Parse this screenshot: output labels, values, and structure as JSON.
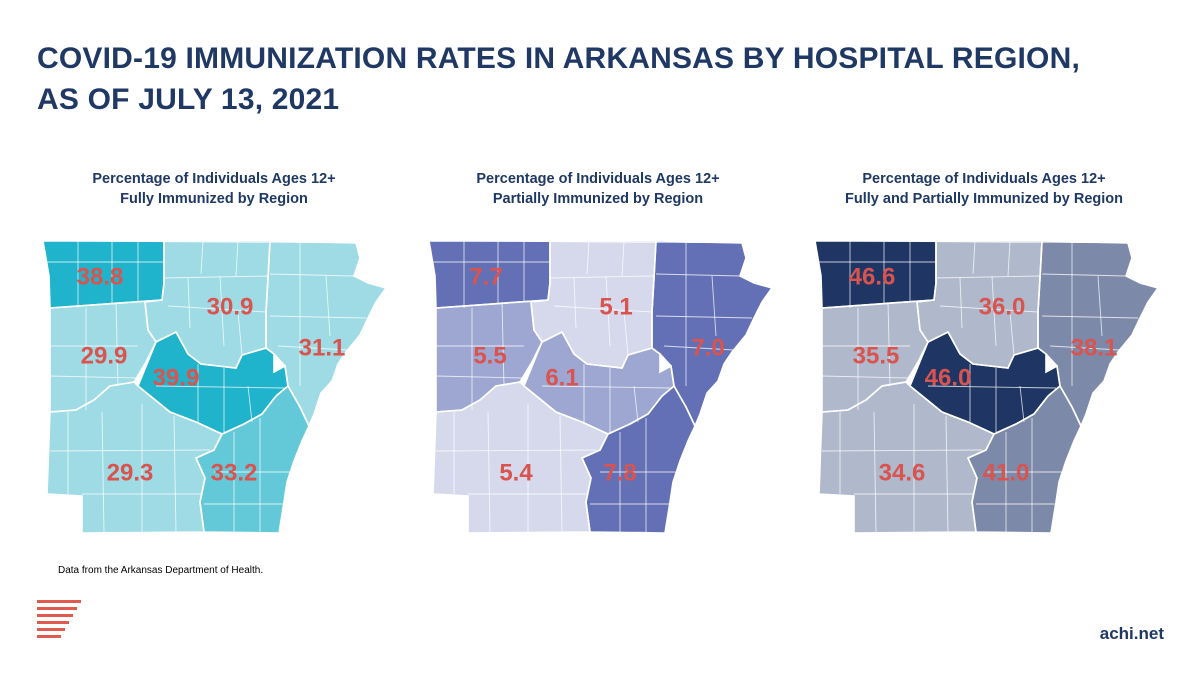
{
  "title": {
    "line1": "COVID-19 IMMUNIZATION RATES IN ARKANSAS BY HOSPITAL REGION,",
    "line2": "AS OF JULY 13, 2021"
  },
  "panels": [
    {
      "title_line1": "Percentage of Individuals Ages 12+",
      "title_line2": "Fully Immunized by Region",
      "colors": {
        "low": "#9edbe5",
        "mid": "#63c9d9",
        "high": "#1fb3cc",
        "label": "#d9534f"
      },
      "regions": [
        {
          "id": "northwest",
          "value": "38.8",
          "shade": "high"
        },
        {
          "id": "north-central",
          "value": "30.9",
          "shade": "low"
        },
        {
          "id": "northeast",
          "value": "31.1",
          "shade": "low"
        },
        {
          "id": "west",
          "value": "29.9",
          "shade": "low"
        },
        {
          "id": "central",
          "value": "39.9",
          "shade": "high"
        },
        {
          "id": "southwest",
          "value": "29.3",
          "shade": "low"
        },
        {
          "id": "southeast",
          "value": "33.2",
          "shade": "mid"
        }
      ]
    },
    {
      "title_line1": "Percentage of Individuals Ages 12+",
      "title_line2": "Partially Immunized by Region",
      "colors": {
        "low": "#d6d9ec",
        "mid": "#9ea6d2",
        "high": "#6470b5",
        "label": "#d9534f"
      },
      "regions": [
        {
          "id": "northwest",
          "value": "7.7",
          "shade": "high"
        },
        {
          "id": "north-central",
          "value": "5.1",
          "shade": "low"
        },
        {
          "id": "northeast",
          "value": "7.0",
          "shade": "high"
        },
        {
          "id": "west",
          "value": "5.5",
          "shade": "mid"
        },
        {
          "id": "central",
          "value": "6.1",
          "shade": "mid"
        },
        {
          "id": "southwest",
          "value": "5.4",
          "shade": "low"
        },
        {
          "id": "southeast",
          "value": "7.8",
          "shade": "high"
        }
      ]
    },
    {
      "title_line1": "Percentage of Individuals Ages 12+",
      "title_line2": "Fully and Partially Immunized by Region",
      "colors": {
        "low": "#b0b8cb",
        "mid": "#7d89a8",
        "high": "#1f3564",
        "label": "#d9534f"
      },
      "regions": [
        {
          "id": "northwest",
          "value": "46.6",
          "shade": "high"
        },
        {
          "id": "north-central",
          "value": "36.0",
          "shade": "low"
        },
        {
          "id": "northeast",
          "value": "38.1",
          "shade": "mid"
        },
        {
          "id": "west",
          "value": "35.5",
          "shade": "low"
        },
        {
          "id": "central",
          "value": "46.0",
          "shade": "high"
        },
        {
          "id": "southwest",
          "value": "34.6",
          "shade": "low"
        },
        {
          "id": "southeast",
          "value": "41.0",
          "shade": "mid"
        }
      ]
    }
  ],
  "source": "Data from the Arkansas Department of Health.",
  "site": "achi.net",
  "brand_color": "#e05a4f",
  "title_color": "#1f3864"
}
